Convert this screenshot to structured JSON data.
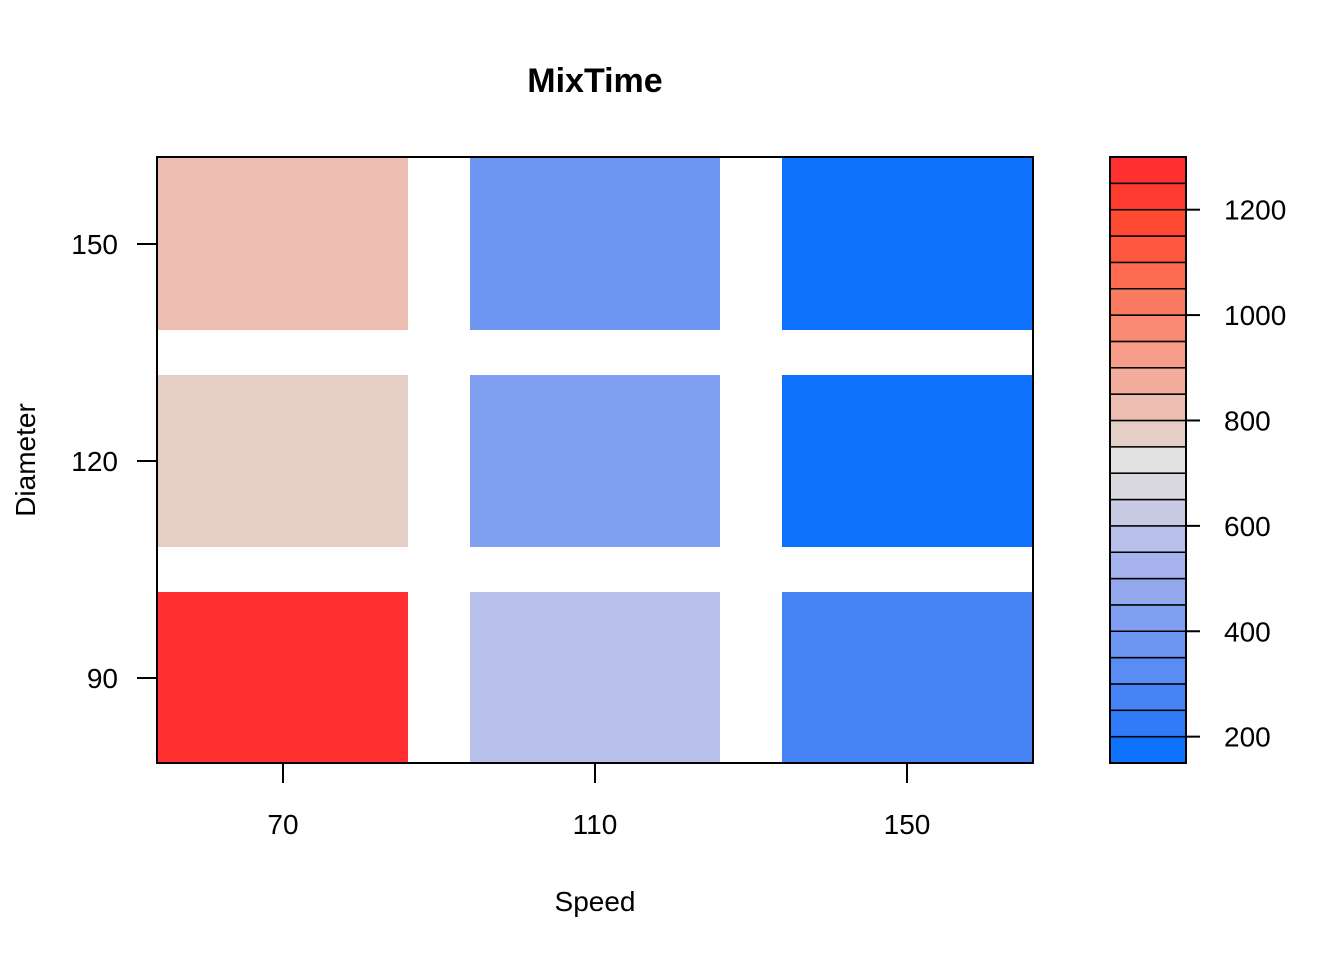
{
  "chart_data": {
    "type": "heatmap",
    "title": "MixTime",
    "xlabel": "Speed",
    "ylabel": "Diameter",
    "x_categories": [
      "70",
      "110",
      "150"
    ],
    "y_categories": [
      "90",
      "120",
      "150"
    ],
    "x_ticks": [
      70,
      110,
      150
    ],
    "y_ticks": [
      90,
      120,
      150
    ],
    "cells": [
      {
        "x": 70,
        "y": 90,
        "value": 1250
      },
      {
        "x": 110,
        "y": 90,
        "value": 560
      },
      {
        "x": 150,
        "y": 90,
        "value": 280
      },
      {
        "x": 70,
        "y": 120,
        "value": 750
      },
      {
        "x": 110,
        "y": 120,
        "value": 400
      },
      {
        "x": 150,
        "y": 120,
        "value": 180
      },
      {
        "x": 70,
        "y": 150,
        "value": 830
      },
      {
        "x": 110,
        "y": 150,
        "value": 390
      },
      {
        "x": 150,
        "y": 150,
        "value": 170
      }
    ],
    "colorbar": {
      "range": [
        150,
        1300
      ],
      "ticks": [
        200,
        400,
        600,
        800,
        1000,
        1200
      ],
      "step": 50,
      "colors": [
        "#0e72fc",
        "#2f7bf9",
        "#4684f6",
        "#598df4",
        "#6d96f2",
        "#819ff0",
        "#94a8ee",
        "#a6b3ec",
        "#b8bfe8",
        "#c9cbe4",
        "#d9d9df",
        "#e2e2e2",
        "#e5cec6",
        "#ecbeb2",
        "#f3ad9c",
        "#f69c88",
        "#f98b75",
        "#fb7a62",
        "#fd6a50",
        "#fe5940",
        "#fe4933",
        "#ff3b2f",
        "#ff302f"
      ]
    },
    "legend": "right",
    "grid": false
  }
}
